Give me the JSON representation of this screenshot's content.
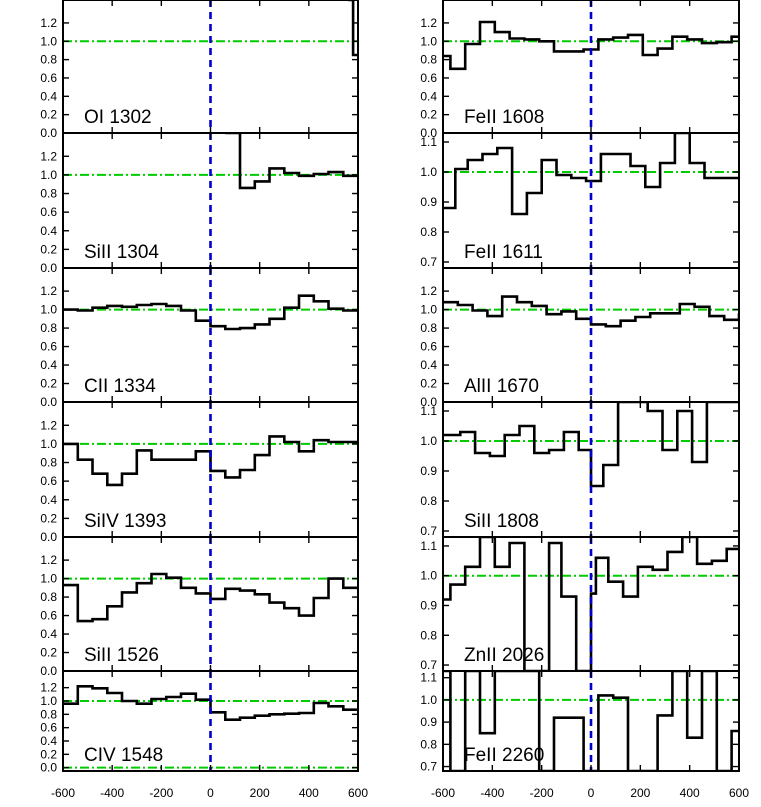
{
  "chart_data": {
    "type": "line",
    "style": "step",
    "layout": "2 columns x 6 rows of stacked panels sharing the x axis",
    "x_ticks": [
      -600,
      -400,
      -200,
      0,
      200,
      400,
      600
    ],
    "x_tick_labels": [
      "-600",
      "-400",
      "-200",
      "0",
      "200",
      "400",
      "600"
    ],
    "xlim": [
      -600,
      600
    ],
    "continuum_level": 1.0,
    "zero_level": 0.0,
    "velocity_zero": 0,
    "colors": {
      "spectrum": "#000000",
      "continuum_line": "#00cc00",
      "zero_line": "#00cc00",
      "velocity_zero_line": "#0000cc"
    },
    "panels": [
      {
        "label": "OI 1302",
        "column": 0,
        "row": 0,
        "ylim": [
          0,
          1.45
        ],
        "yticks": [
          0.0,
          0.2,
          0.4,
          0.6,
          0.8,
          1.0,
          1.2
        ],
        "ytick_labels": [
          "0.0",
          "0.2",
          "0.4",
          "0.6",
          "0.8",
          "1.0",
          "1.2"
        ],
        "show_zero_line": true,
        "x": [
          560,
          580,
          600
        ],
        "y": [
          1.45,
          0.85,
          0.85
        ]
      },
      {
        "label": "SiII 1304",
        "column": 0,
        "row": 1,
        "ylim": [
          0,
          1.45
        ],
        "yticks": [
          0.0,
          0.2,
          0.4,
          0.6,
          0.8,
          1.0,
          1.2
        ],
        "ytick_labels": [
          "0.0",
          "0.2",
          "0.4",
          "0.6",
          "0.8",
          "1.0",
          "1.2"
        ],
        "show_zero_line": true,
        "x": [
          60,
          120,
          180,
          240,
          300,
          360,
          420,
          480,
          540,
          600
        ],
        "y": [
          1.45,
          0.86,
          0.93,
          1.07,
          1.02,
          0.99,
          1.01,
          1.03,
          0.99,
          0.99
        ]
      },
      {
        "label": "CII 1334",
        "column": 0,
        "row": 2,
        "ylim": [
          0,
          1.45
        ],
        "yticks": [
          0.0,
          0.2,
          0.4,
          0.6,
          0.8,
          1.0,
          1.2
        ],
        "ytick_labels": [
          "0.0",
          "0.2",
          "0.4",
          "0.6",
          "0.8",
          "1.0",
          "1.2"
        ],
        "show_zero_line": true,
        "x": [
          -600,
          -540,
          -480,
          -420,
          -360,
          -300,
          -240,
          -180,
          -120,
          -60,
          0,
          60,
          120,
          180,
          240,
          300,
          360,
          420,
          480,
          540,
          600
        ],
        "y": [
          1.0,
          0.99,
          1.02,
          1.04,
          1.03,
          1.05,
          1.06,
          1.04,
          0.99,
          0.88,
          0.82,
          0.79,
          0.8,
          0.84,
          0.9,
          1.02,
          1.15,
          1.09,
          1.01,
          0.99,
          0.98
        ]
      },
      {
        "label": "SiIV 1393",
        "column": 0,
        "row": 3,
        "ylim": [
          0,
          1.45
        ],
        "yticks": [
          0.0,
          0.2,
          0.4,
          0.6,
          0.8,
          1.0,
          1.2
        ],
        "ytick_labels": [
          "0.0",
          "0.2",
          "0.4",
          "0.6",
          "0.8",
          "1.0",
          "1.2"
        ],
        "show_zero_line": true,
        "x": [
          -600,
          -540,
          -480,
          -420,
          -360,
          -300,
          -240,
          -180,
          -120,
          -60,
          0,
          60,
          120,
          180,
          240,
          300,
          360,
          420,
          480,
          540,
          600
        ],
        "y": [
          1.0,
          0.83,
          0.68,
          0.56,
          0.68,
          0.93,
          0.83,
          0.83,
          0.83,
          0.92,
          0.71,
          0.64,
          0.72,
          0.88,
          1.08,
          1.02,
          0.92,
          1.04,
          1.02,
          1.02,
          1.02
        ]
      },
      {
        "label": "SiII 1526",
        "column": 0,
        "row": 4,
        "ylim": [
          0,
          1.45
        ],
        "yticks": [
          0.0,
          0.2,
          0.4,
          0.6,
          0.8,
          1.0,
          1.2
        ],
        "ytick_labels": [
          "0.0",
          "0.2",
          "0.4",
          "0.6",
          "0.8",
          "1.0",
          "1.2"
        ],
        "show_zero_line": true,
        "x": [
          -600,
          -540,
          -480,
          -420,
          -360,
          -300,
          -240,
          -180,
          -120,
          -60,
          0,
          60,
          120,
          180,
          240,
          300,
          360,
          420,
          480,
          540,
          600
        ],
        "y": [
          0.93,
          0.54,
          0.56,
          0.7,
          0.85,
          0.95,
          1.05,
          1.01,
          0.9,
          0.84,
          0.78,
          0.89,
          0.87,
          0.83,
          0.74,
          0.68,
          0.6,
          0.79,
          1.0,
          0.9,
          0.9
        ]
      },
      {
        "label": "CIV 1548",
        "column": 0,
        "row": 5,
        "ylim": [
          -0.05,
          1.45
        ],
        "yticks": [
          0.0,
          0.2,
          0.4,
          0.6,
          0.8,
          1.0,
          1.2
        ],
        "ytick_labels": [
          "0.0",
          "0.2",
          "0.4",
          "0.6",
          "0.8",
          "1.0",
          "1.2"
        ],
        "show_zero_line": true,
        "x": [
          -600,
          -540,
          -480,
          -420,
          -360,
          -300,
          -240,
          -180,
          -120,
          -60,
          0,
          60,
          120,
          180,
          240,
          300,
          360,
          420,
          480,
          540,
          600
        ],
        "y": [
          0.96,
          1.22,
          1.19,
          1.12,
          1.0,
          0.96,
          1.03,
          1.06,
          1.11,
          1.02,
          0.83,
          0.72,
          0.75,
          0.78,
          0.8,
          0.81,
          0.82,
          0.97,
          0.92,
          0.87,
          0.85
        ]
      },
      {
        "label": "FeII 1608",
        "column": 1,
        "row": 0,
        "ylim": [
          0,
          1.45
        ],
        "yticks": [
          0.0,
          0.2,
          0.4,
          0.6,
          0.8,
          1.0,
          1.2
        ],
        "ytick_labels": [
          "0.0",
          "0.2",
          "0.4",
          "0.6",
          "0.8",
          "1.0",
          "1.2"
        ],
        "show_zero_line": true,
        "x": [
          -600,
          -570,
          -510,
          -450,
          -390,
          -330,
          -270,
          -210,
          -150,
          -90,
          -30,
          30,
          90,
          150,
          210,
          270,
          330,
          390,
          450,
          510,
          570,
          600
        ],
        "y": [
          0.84,
          0.7,
          0.97,
          1.21,
          1.1,
          1.03,
          1.02,
          1.0,
          0.89,
          0.89,
          0.91,
          1.02,
          1.04,
          1.07,
          0.85,
          0.92,
          1.05,
          1.02,
          0.98,
          0.99,
          1.05,
          1.05
        ]
      },
      {
        "label": "FeII 1611",
        "column": 1,
        "row": 1,
        "ylim": [
          0.68,
          1.13
        ],
        "yticks": [
          0.7,
          0.8,
          0.9,
          1.0,
          1.1
        ],
        "ytick_labels": [
          "0.7",
          "0.8",
          "0.9",
          "1.0",
          "1.1"
        ],
        "show_zero_line": false,
        "x": [
          -600,
          -550,
          -500,
          -440,
          -380,
          -320,
          -260,
          -200,
          -140,
          -80,
          -20,
          40,
          100,
          160,
          220,
          280,
          340,
          400,
          460,
          520,
          580,
          600
        ],
        "y": [
          0.88,
          1.01,
          1.04,
          1.06,
          1.08,
          0.86,
          0.93,
          1.04,
          0.99,
          0.98,
          0.97,
          1.06,
          1.06,
          1.02,
          0.95,
          1.03,
          1.13,
          1.03,
          0.98,
          0.98,
          0.98,
          0.98
        ]
      },
      {
        "label": "AlII 1670",
        "column": 1,
        "row": 2,
        "ylim": [
          0,
          1.45
        ],
        "yticks": [
          0.0,
          0.2,
          0.4,
          0.6,
          0.8,
          1.0,
          1.2
        ],
        "ytick_labels": [
          "0.0",
          "0.2",
          "0.4",
          "0.6",
          "0.8",
          "1.0",
          "1.2"
        ],
        "show_zero_line": true,
        "x": [
          -600,
          -540,
          -480,
          -420,
          -360,
          -300,
          -240,
          -180,
          -120,
          -60,
          0,
          60,
          120,
          180,
          240,
          300,
          360,
          420,
          480,
          540,
          600
        ],
        "y": [
          1.08,
          1.05,
          0.99,
          0.93,
          1.14,
          1.08,
          1.04,
          0.95,
          0.98,
          0.9,
          0.84,
          0.82,
          0.88,
          0.92,
          0.96,
          0.96,
          1.06,
          1.03,
          0.93,
          0.89,
          0.96
        ]
      },
      {
        "label": "SiII 1808",
        "column": 1,
        "row": 3,
        "ylim": [
          0.68,
          1.13
        ],
        "yticks": [
          0.7,
          0.8,
          0.9,
          1.0,
          1.1
        ],
        "ytick_labels": [
          "0.7",
          "0.8",
          "0.9",
          "1.0",
          "1.1"
        ],
        "show_zero_line": false,
        "x": [
          -600,
          -530,
          -470,
          -410,
          -350,
          -290,
          -230,
          -170,
          -110,
          -50,
          0,
          50,
          110,
          170,
          230,
          290,
          350,
          410,
          470,
          530,
          600
        ],
        "y": [
          1.02,
          1.03,
          0.96,
          0.95,
          1.02,
          1.05,
          0.96,
          0.97,
          1.03,
          0.97,
          0.85,
          0.92,
          1.13,
          1.13,
          1.1,
          0.97,
          1.1,
          0.93,
          1.13,
          1.13,
          1.13
        ]
      },
      {
        "label": "ZnII 2026",
        "column": 1,
        "row": 4,
        "ylim": [
          0.68,
          1.13
        ],
        "yticks": [
          0.7,
          0.8,
          0.9,
          1.0,
          1.1
        ],
        "ytick_labels": [
          "0.7",
          "0.8",
          "0.9",
          "1.0",
          "1.1"
        ],
        "show_zero_line": false,
        "x": [
          -600,
          -570,
          -510,
          -450,
          -390,
          -330,
          -270,
          -220,
          -170,
          -120,
          -60,
          0,
          20,
          70,
          130,
          190,
          250,
          310,
          370,
          430,
          490,
          550,
          600
        ],
        "y": [
          0.92,
          0.97,
          1.03,
          1.13,
          1.03,
          1.11,
          0.68,
          0.68,
          1.11,
          0.93,
          0.68,
          0.94,
          1.06,
          0.98,
          0.93,
          1.03,
          1.02,
          1.08,
          1.13,
          1.04,
          1.05,
          1.09,
          1.09
        ]
      },
      {
        "label": "FeII 2260",
        "column": 1,
        "row": 5,
        "ylim": [
          0.68,
          1.13
        ],
        "yticks": [
          0.7,
          0.8,
          0.9,
          1.0,
          1.1
        ],
        "ytick_labels": [
          "0.7",
          "0.8",
          "0.9",
          "1.0",
          "1.1"
        ],
        "show_zero_line": false,
        "x": [
          -600,
          -570,
          -510,
          -450,
          -390,
          -330,
          -270,
          -210,
          -150,
          -90,
          -30,
          30,
          90,
          150,
          210,
          270,
          330,
          390,
          450,
          510,
          570,
          600
        ],
        "y": [
          1.13,
          0.68,
          1.13,
          0.85,
          1.13,
          1.13,
          1.13,
          0.68,
          0.92,
          0.92,
          0.68,
          1.02,
          1.01,
          0.68,
          0.68,
          0.93,
          1.13,
          0.83,
          1.13,
          0.68,
          0.86,
          0.86
        ]
      }
    ]
  }
}
